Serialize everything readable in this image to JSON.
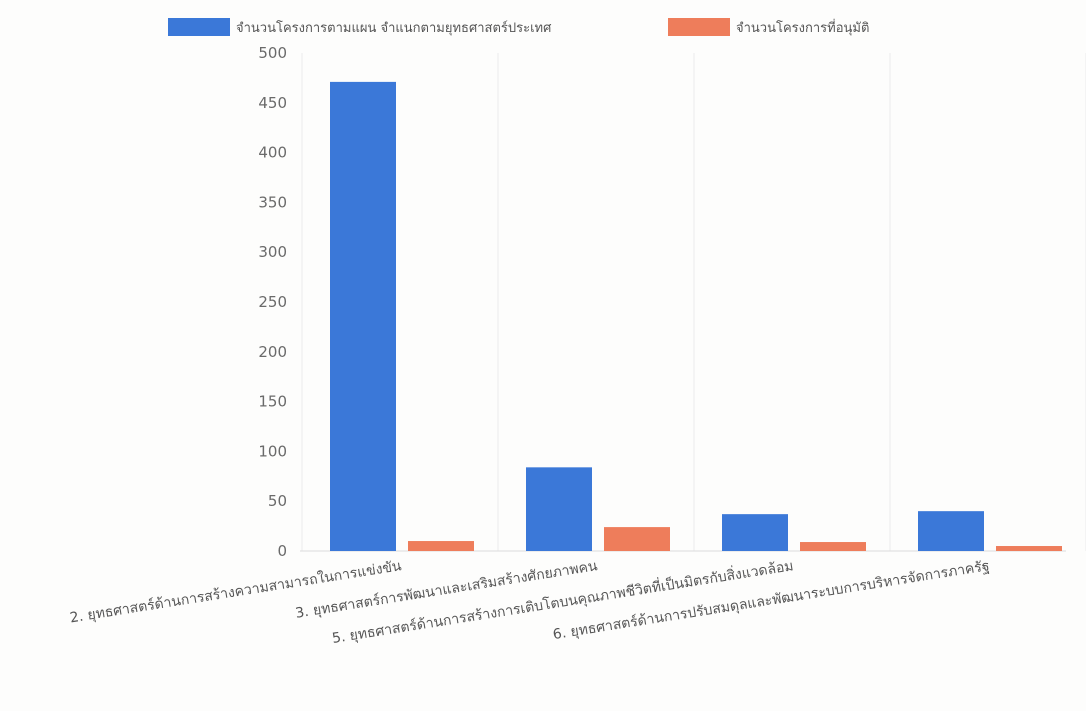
{
  "chart_data": {
    "type": "bar",
    "categories": [
      "2. ยุทธศาสตร์ด้านการสร้างความสามารถในการแข่งขัน",
      "3. ยุทธศาสตร์การพัฒนาและเสริมสร้างศักยภาพคน",
      "5. ยุทธศาสตร์ด้านการสร้างการเติบโตบนคุณภาพชีวิตที่เป็นมิตรกับสิ่งแวดล้อม",
      "6. ยุทธศาสตร์ด้านการปรับสมดุลและพัฒนาระบบการบริหารจัดการภาครัฐ"
    ],
    "series": [
      {
        "name": "จำนวนโครงการตามแผน จำแนกตามยุทธศาสตร์ประเทศ",
        "color": "#3b78d8",
        "values": [
          471,
          84,
          37,
          40
        ]
      },
      {
        "name": "จำนวนโครงการที่อนุมัติ",
        "color": "#ee7d5b",
        "values": [
          10,
          24,
          9,
          5
        ]
      }
    ],
    "ylim": [
      0,
      500
    ],
    "yticks": [
      0,
      50,
      100,
      150,
      200,
      250,
      300,
      350,
      400,
      450,
      500
    ],
    "grid": "vertical",
    "legend_position": "top"
  }
}
